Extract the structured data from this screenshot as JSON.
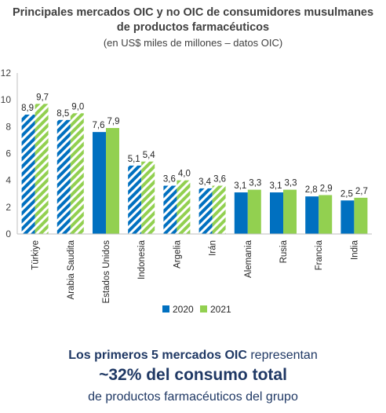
{
  "chart_data": {
    "type": "bar",
    "title_line1": "Principales mercados OIC y no OIC de consumidores musulmanes",
    "title_line2": "de productos farmacéuticos",
    "subtitle": "(en US$ miles de millones – datos OIC)",
    "categories": [
      "Türkiye",
      "Arabia Saudita",
      "Estados Unidos",
      "Indonesia",
      "Argelia",
      "Irán",
      "Alemania",
      "Rusia",
      "Francia",
      "India"
    ],
    "series": [
      {
        "name": "2020",
        "values": [
          8.9,
          8.5,
          7.6,
          5.1,
          3.6,
          3.4,
          3.1,
          3.1,
          2.8,
          2.5
        ],
        "labels": [
          "8,9",
          "8,5",
          "7,6",
          "5,1",
          "3,6",
          "3,4",
          "3,1",
          "3,1",
          "2,8",
          "2,5"
        ],
        "color": "#0070c0"
      },
      {
        "name": "2021",
        "values": [
          9.7,
          9.0,
          7.9,
          5.4,
          4.0,
          3.6,
          3.3,
          3.3,
          2.9,
          2.7
        ],
        "labels": [
          "9,7",
          "9,0",
          "7,9",
          "5,4",
          "4,0",
          "3,6",
          "3,3",
          "3,3",
          "2,9",
          "2,7"
        ],
        "color": "#92d050"
      }
    ],
    "hatched_categories": [
      "Türkiye",
      "Arabia Saudita",
      "Indonesia",
      "Argelia",
      "Irán"
    ],
    "ylim": [
      0,
      12
    ],
    "yticks": [
      0,
      2,
      4,
      6,
      8,
      10,
      12
    ],
    "grid": false,
    "legend_position": "bottom"
  },
  "footer": {
    "line1_bold": "Los primeros 5 mercados OIC",
    "line1_rest": " representan",
    "line2": "~32% del consumo total",
    "line3": "de productos farmacéuticos del grupo"
  }
}
